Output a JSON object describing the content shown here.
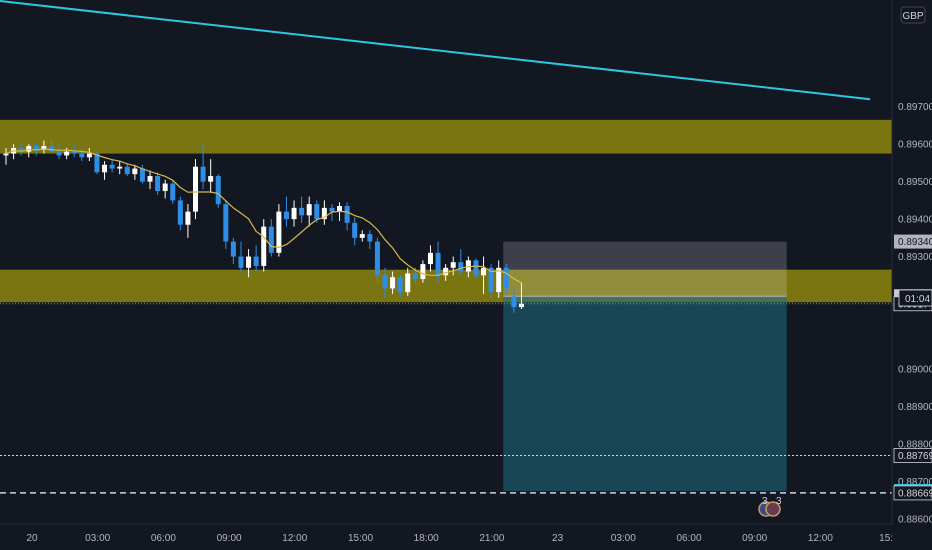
{
  "chart_data": {
    "type": "candlestick",
    "currency": "GBP",
    "timer": "01:04",
    "y_axis": {
      "ticks": [
        "0.89700",
        "0.89600",
        "0.89500",
        "0.89400",
        "0.89300",
        "0.89000",
        "0.88900",
        "0.88800",
        "0.88700",
        "0.88600"
      ],
      "ylim": [
        0.88586,
        0.89985
      ]
    },
    "x_axis": {
      "ticks": [
        "20",
        "03:00",
        "06:00",
        "09:00",
        "12:00",
        "15:00",
        "18:00",
        "21:00",
        "23",
        "03:00",
        "06:00",
        "09:00",
        "12:00",
        "15:"
      ]
    },
    "price_labels": [
      {
        "value": "0.89340",
        "color": "#b2b5be",
        "text_color": "#131722",
        "name": "target-price-label"
      },
      {
        "value": "0.89194",
        "color": "#c9cbd1",
        "text_color": "#131722",
        "name": "entry-price-label"
      },
      {
        "value": "0.89174",
        "color": "#131722",
        "text_color": "#d1d4dc",
        "name": "last-price-label"
      },
      {
        "value": "0.88769",
        "color": "#131722",
        "text_color": "#d1d4dc",
        "name": "dotted-level-label"
      },
      {
        "value": "0.88674",
        "color": "#2ec7e0",
        "text_color": "#131722",
        "name": "stop-price-label"
      },
      {
        "value": "0.88669",
        "color": "#131722",
        "text_color": "#d1d4dc",
        "name": "dashed-level-label"
      }
    ],
    "zones": [
      {
        "top": 0.89665,
        "bottom": 0.89575,
        "color": "#807a10"
      },
      {
        "top": 0.89265,
        "bottom": 0.89178,
        "color": "#807a10"
      }
    ],
    "position": {
      "entry": 0.89194,
      "target": 0.8934,
      "stop": 0.88674,
      "start_bar": 66,
      "end_bar": 103
    },
    "levels": [
      {
        "value": 0.88769,
        "style": "dotted"
      },
      {
        "value": 0.88669,
        "style": "dashed"
      },
      {
        "value": 0.89174,
        "style": "last-dotted"
      }
    ],
    "trendline": [
      [
        -12,
        0.90008
      ],
      [
        114,
        0.8972
      ]
    ],
    "candles": [
      [
        0.8957,
        0.8959,
        0.89545,
        0.89575
      ],
      [
        0.89575,
        0.896,
        0.8956,
        0.8959
      ],
      [
        0.8959,
        0.89605,
        0.8957,
        0.8958
      ],
      [
        0.8958,
        0.896,
        0.89565,
        0.89595
      ],
      [
        0.89595,
        0.896,
        0.8957,
        0.89585
      ],
      [
        0.89585,
        0.8961,
        0.89575,
        0.89595
      ],
      [
        0.89595,
        0.89615,
        0.89575,
        0.8958
      ],
      [
        0.8958,
        0.896,
        0.8956,
        0.8957
      ],
      [
        0.8957,
        0.8959,
        0.8956,
        0.8958
      ],
      [
        0.8958,
        0.89595,
        0.89565,
        0.89575
      ],
      [
        0.89575,
        0.8959,
        0.89555,
        0.89565
      ],
      [
        0.89565,
        0.8959,
        0.89555,
        0.89575
      ],
      [
        0.89575,
        0.8958,
        0.8952,
        0.89525
      ],
      [
        0.89525,
        0.89555,
        0.89505,
        0.89545
      ],
      [
        0.89545,
        0.8956,
        0.89525,
        0.89535
      ],
      [
        0.89535,
        0.89555,
        0.8952,
        0.8954
      ],
      [
        0.8954,
        0.8955,
        0.89515,
        0.8952
      ],
      [
        0.8952,
        0.89545,
        0.89505,
        0.89535
      ],
      [
        0.89535,
        0.89545,
        0.89495,
        0.895
      ],
      [
        0.895,
        0.8953,
        0.8948,
        0.89515
      ],
      [
        0.89515,
        0.89525,
        0.89465,
        0.89475
      ],
      [
        0.89475,
        0.89505,
        0.89455,
        0.89495
      ],
      [
        0.89495,
        0.89505,
        0.8944,
        0.8945
      ],
      [
        0.8945,
        0.8946,
        0.8937,
        0.89385
      ],
      [
        0.89385,
        0.8944,
        0.8935,
        0.8942
      ],
      [
        0.8942,
        0.8956,
        0.894,
        0.8954
      ],
      [
        0.8954,
        0.896,
        0.8948,
        0.895
      ],
      [
        0.895,
        0.8956,
        0.8947,
        0.89515
      ],
      [
        0.89515,
        0.8952,
        0.8943,
        0.8944
      ],
      [
        0.8944,
        0.8945,
        0.8932,
        0.8934
      ],
      [
        0.8934,
        0.8935,
        0.8928,
        0.893
      ],
      [
        0.893,
        0.8934,
        0.89255,
        0.8927
      ],
      [
        0.8927,
        0.8932,
        0.89245,
        0.893
      ],
      [
        0.893,
        0.8933,
        0.8926,
        0.89275
      ],
      [
        0.89275,
        0.894,
        0.8926,
        0.8938
      ],
      [
        0.8938,
        0.894,
        0.893,
        0.8931
      ],
      [
        0.8931,
        0.8944,
        0.893,
        0.8942
      ],
      [
        0.8942,
        0.8946,
        0.8938,
        0.894
      ],
      [
        0.894,
        0.8945,
        0.8938,
        0.8943
      ],
      [
        0.8943,
        0.8946,
        0.8939,
        0.8941
      ],
      [
        0.8941,
        0.8946,
        0.8938,
        0.8944
      ],
      [
        0.8944,
        0.8945,
        0.8939,
        0.894
      ],
      [
        0.894,
        0.8945,
        0.89385,
        0.8943
      ],
      [
        0.8943,
        0.8944,
        0.89395,
        0.8942
      ],
      [
        0.8942,
        0.89445,
        0.89395,
        0.89435
      ],
      [
        0.89435,
        0.89445,
        0.8937,
        0.8939
      ],
      [
        0.8939,
        0.89405,
        0.8933,
        0.8935
      ],
      [
        0.8935,
        0.8937,
        0.8934,
        0.8936
      ],
      [
        0.8936,
        0.8937,
        0.8932,
        0.8934
      ],
      [
        0.8934,
        0.8935,
        0.8923,
        0.8925
      ],
      [
        0.8925,
        0.8927,
        0.8919,
        0.89215
      ],
      [
        0.89215,
        0.8926,
        0.892,
        0.89245
      ],
      [
        0.89245,
        0.8925,
        0.8919,
        0.89205
      ],
      [
        0.89205,
        0.8927,
        0.89195,
        0.89255
      ],
      [
        0.89255,
        0.8927,
        0.89225,
        0.8924
      ],
      [
        0.8924,
        0.8929,
        0.8923,
        0.8928
      ],
      [
        0.8928,
        0.8933,
        0.8926,
        0.8931
      ],
      [
        0.8931,
        0.8934,
        0.8923,
        0.8925
      ],
      [
        0.8925,
        0.8928,
        0.89235,
        0.8927
      ],
      [
        0.8927,
        0.893,
        0.8925,
        0.89285
      ],
      [
        0.89285,
        0.8932,
        0.8925,
        0.8926
      ],
      [
        0.8926,
        0.893,
        0.89245,
        0.8929
      ],
      [
        0.8929,
        0.89295,
        0.8924,
        0.8925
      ],
      [
        0.8925,
        0.893,
        0.892,
        0.8927
      ],
      [
        0.8927,
        0.8928,
        0.8919,
        0.89205
      ],
      [
        0.89205,
        0.8929,
        0.8919,
        0.8927
      ],
      [
        0.8927,
        0.8928,
        0.892,
        0.89215
      ],
      [
        0.89194,
        0.8922,
        0.8915,
        0.89165
      ],
      [
        0.89165,
        0.8923,
        0.8916,
        0.89174
      ]
    ]
  },
  "indicator_ma": {
    "color": "#d4b84a"
  },
  "events": {
    "labels": [
      "3",
      "3"
    ]
  }
}
